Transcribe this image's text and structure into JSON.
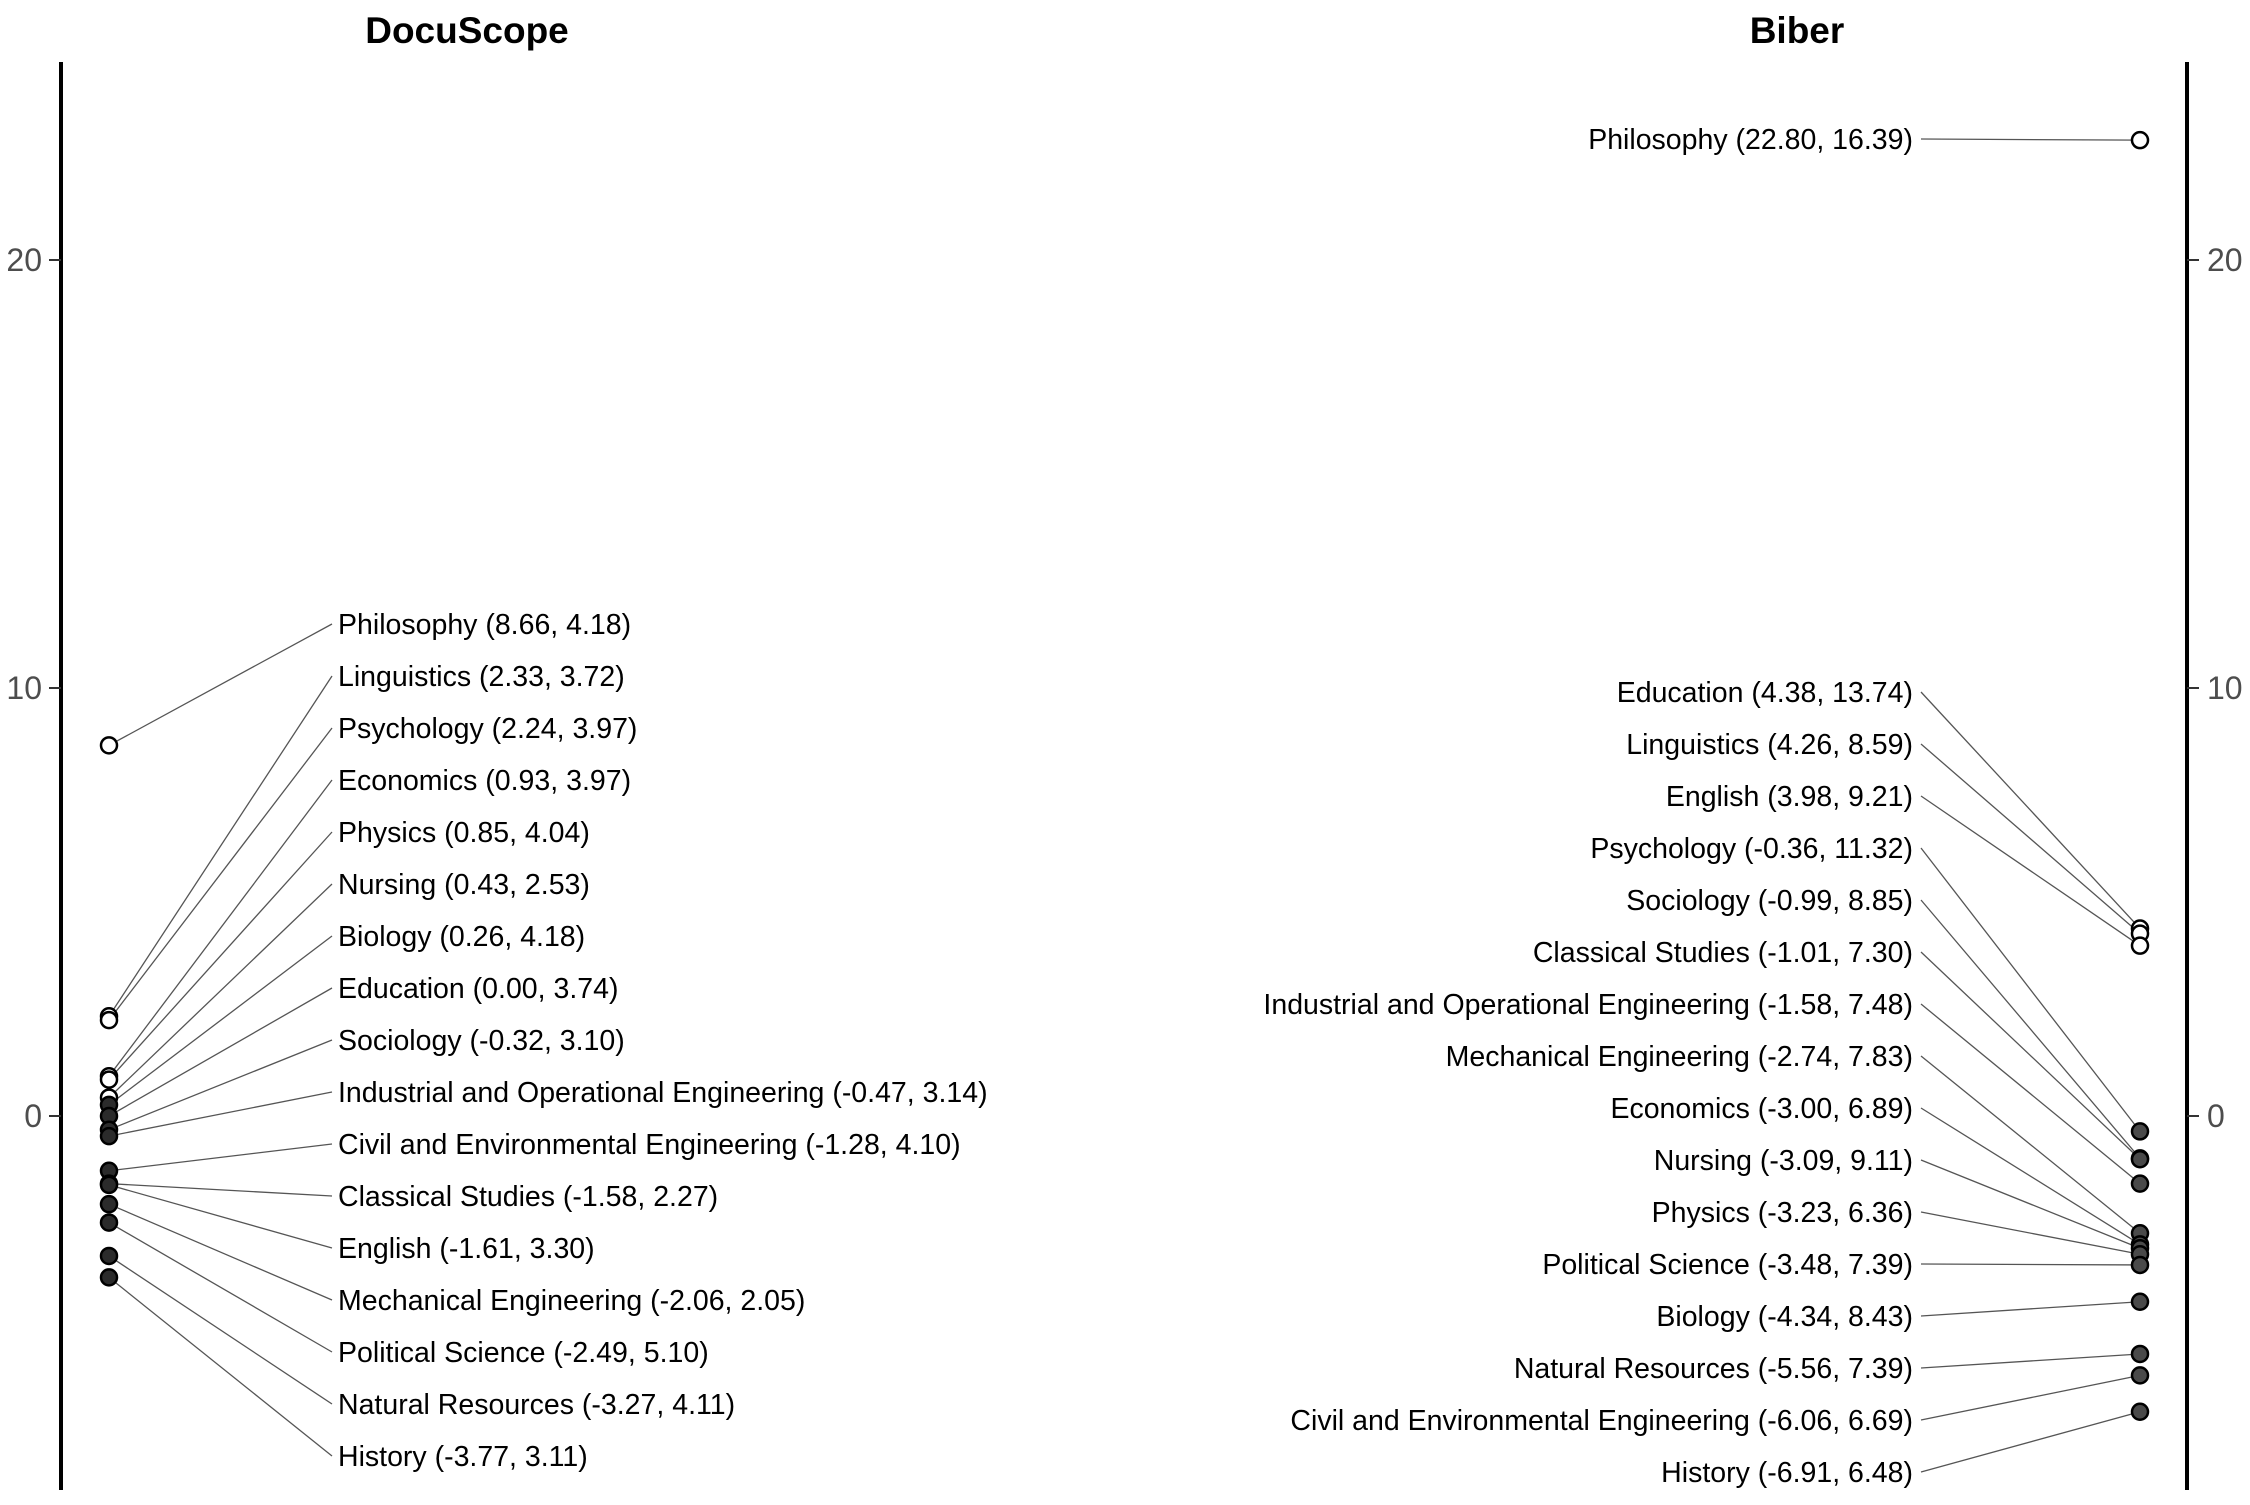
{
  "chart_data": [
    {
      "type": "scatter",
      "title": "DocuScope",
      "axis_side": "left",
      "ylim": [
        -8.5,
        24.5
      ],
      "yticks": [
        0,
        10,
        20
      ],
      "grid": false,
      "colors": {
        "high": "#ffffff",
        "low": "#2b2b2b",
        "stroke": "#000000"
      },
      "points": [
        {
          "label": "Philosophy (8.66, 4.18)",
          "y": 8.66,
          "high": true
        },
        {
          "label": "Linguistics (2.33, 3.72)",
          "y": 2.33,
          "high": true
        },
        {
          "label": "Psychology (2.24, 3.97)",
          "y": 2.24,
          "high": true
        },
        {
          "label": "Economics (0.93, 3.97)",
          "y": 0.93,
          "high": true
        },
        {
          "label": "Physics (0.85, 4.04)",
          "y": 0.85,
          "high": true
        },
        {
          "label": "Nursing (0.43, 2.53)",
          "y": 0.43,
          "high": true
        },
        {
          "label": "Biology (0.26, 4.18)",
          "y": 0.26,
          "high": false
        },
        {
          "label": "Education (0.00, 3.74)",
          "y": 0.0,
          "high": false
        },
        {
          "label": "Sociology (-0.32, 3.10)",
          "y": -0.32,
          "high": false
        },
        {
          "label": "Industrial and Operational Engineering (-0.47, 3.14)",
          "y": -0.47,
          "high": false
        },
        {
          "label": "Civil and Environmental Engineering (-1.28, 4.10)",
          "y": -1.28,
          "high": false
        },
        {
          "label": "Classical Studies (-1.58, 2.27)",
          "y": -1.58,
          "high": false
        },
        {
          "label": "English (-1.61, 3.30)",
          "y": -1.61,
          "high": false
        },
        {
          "label": "Mechanical Engineering (-2.06, 2.05)",
          "y": -2.06,
          "high": false
        },
        {
          "label": "Political Science (-2.49, 5.10)",
          "y": -2.49,
          "high": false
        },
        {
          "label": "Natural Resources (-3.27, 4.11)",
          "y": -3.27,
          "high": false
        },
        {
          "label": "History (-3.77, 3.11)",
          "y": -3.77,
          "high": false
        }
      ]
    },
    {
      "type": "scatter",
      "title": "Biber",
      "axis_side": "right",
      "ylim": [
        -8.5,
        24.5
      ],
      "yticks": [
        0,
        10,
        20
      ],
      "grid": false,
      "colors": {
        "high": "#ffffff",
        "low": "#4a4a4a",
        "stroke": "#000000"
      },
      "points": [
        {
          "label": "Philosophy (22.80, 16.39)",
          "y": 22.8,
          "high": true
        },
        {
          "label": "Education (4.38, 13.74)",
          "y": 4.38,
          "high": true
        },
        {
          "label": "Linguistics (4.26, 8.59)",
          "y": 4.26,
          "high": true
        },
        {
          "label": "English (3.98, 9.21)",
          "y": 3.98,
          "high": true
        },
        {
          "label": "Psychology (-0.36, 11.32)",
          "y": -0.36,
          "high": false
        },
        {
          "label": "Sociology (-0.99, 8.85)",
          "y": -0.99,
          "high": false
        },
        {
          "label": "Classical Studies (-1.01, 7.30)",
          "y": -1.01,
          "high": false
        },
        {
          "label": "Industrial and Operational Engineering (-1.58, 7.48)",
          "y": -1.58,
          "high": false
        },
        {
          "label": "Mechanical Engineering (-2.74, 7.83)",
          "y": -2.74,
          "high": false
        },
        {
          "label": "Economics (-3.00, 6.89)",
          "y": -3.0,
          "high": false
        },
        {
          "label": "Nursing (-3.09, 9.11)",
          "y": -3.09,
          "high": false
        },
        {
          "label": "Physics (-3.23, 6.36)",
          "y": -3.23,
          "high": false
        },
        {
          "label": "Political Science (-3.48, 7.39)",
          "y": -3.48,
          "high": false
        },
        {
          "label": "Biology (-4.34, 8.43)",
          "y": -4.34,
          "high": false
        },
        {
          "label": "Natural Resources (-5.56, 7.39)",
          "y": -5.56,
          "high": false
        },
        {
          "label": "Civil and Environmental Engineering (-6.06, 6.69)",
          "y": -6.06,
          "high": false
        },
        {
          "label": "History (-6.91, 6.48)",
          "y": -6.91,
          "high": false
        }
      ]
    }
  ]
}
